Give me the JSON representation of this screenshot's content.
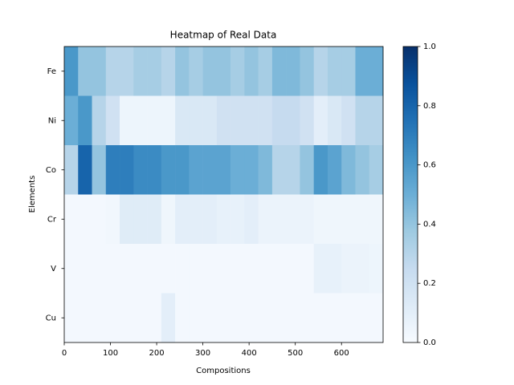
{
  "chart_data": {
    "type": "heatmap",
    "title": "Heatmap of Real Data",
    "x_label": "Compositions",
    "y_label": "Elements",
    "rows": [
      "Fe",
      "Ni",
      "Co",
      "Cr",
      "V",
      "Cu"
    ],
    "bins": [
      0,
      30,
      60,
      90,
      120,
      150,
      180,
      210,
      240,
      270,
      300,
      330,
      360,
      390,
      420,
      450,
      480,
      510,
      540,
      570,
      600,
      630,
      660,
      690
    ],
    "values": [
      [
        0.6,
        0.4,
        0.4,
        0.3,
        0.3,
        0.35,
        0.35,
        0.3,
        0.4,
        0.35,
        0.4,
        0.4,
        0.35,
        0.4,
        0.35,
        0.45,
        0.45,
        0.4,
        0.3,
        0.35,
        0.35,
        0.5,
        0.5
      ],
      [
        0.5,
        0.6,
        0.3,
        0.2,
        0.05,
        0.05,
        0.05,
        0.05,
        0.15,
        0.15,
        0.15,
        0.2,
        0.2,
        0.2,
        0.2,
        0.25,
        0.25,
        0.2,
        0.1,
        0.15,
        0.2,
        0.3,
        0.3
      ],
      [
        0.3,
        0.8,
        0.4,
        0.7,
        0.7,
        0.65,
        0.65,
        0.6,
        0.6,
        0.55,
        0.55,
        0.55,
        0.5,
        0.5,
        0.45,
        0.3,
        0.3,
        0.4,
        0.6,
        0.55,
        0.45,
        0.4,
        0.35
      ],
      [
        0.02,
        0.02,
        0.02,
        0.03,
        0.12,
        0.12,
        0.12,
        0.04,
        0.1,
        0.1,
        0.1,
        0.08,
        0.08,
        0.1,
        0.06,
        0.06,
        0.06,
        0.06,
        0.04,
        0.04,
        0.04,
        0.04,
        0.04
      ],
      [
        0.02,
        0.02,
        0.02,
        0.02,
        0.02,
        0.02,
        0.02,
        0.02,
        0.02,
        0.02,
        0.02,
        0.02,
        0.02,
        0.02,
        0.02,
        0.02,
        0.02,
        0.02,
        0.08,
        0.08,
        0.06,
        0.06,
        0.05
      ],
      [
        0.02,
        0.02,
        0.02,
        0.02,
        0.02,
        0.02,
        0.02,
        0.1,
        0.02,
        0.02,
        0.02,
        0.02,
        0.02,
        0.02,
        0.02,
        0.02,
        0.02,
        0.02,
        0.02,
        0.02,
        0.02,
        0.02,
        0.02
      ]
    ],
    "xlim": [
      0,
      690
    ],
    "xticks": [
      0,
      100,
      200,
      300,
      400,
      500,
      600
    ],
    "clim": [
      0,
      1
    ],
    "cticks": [
      {
        "value": 0,
        "label": "0.0"
      },
      0.2,
      0.4,
      0.6,
      0.8,
      {
        "value": 1,
        "label": "1.0"
      }
    ],
    "cmap": "Blues"
  }
}
